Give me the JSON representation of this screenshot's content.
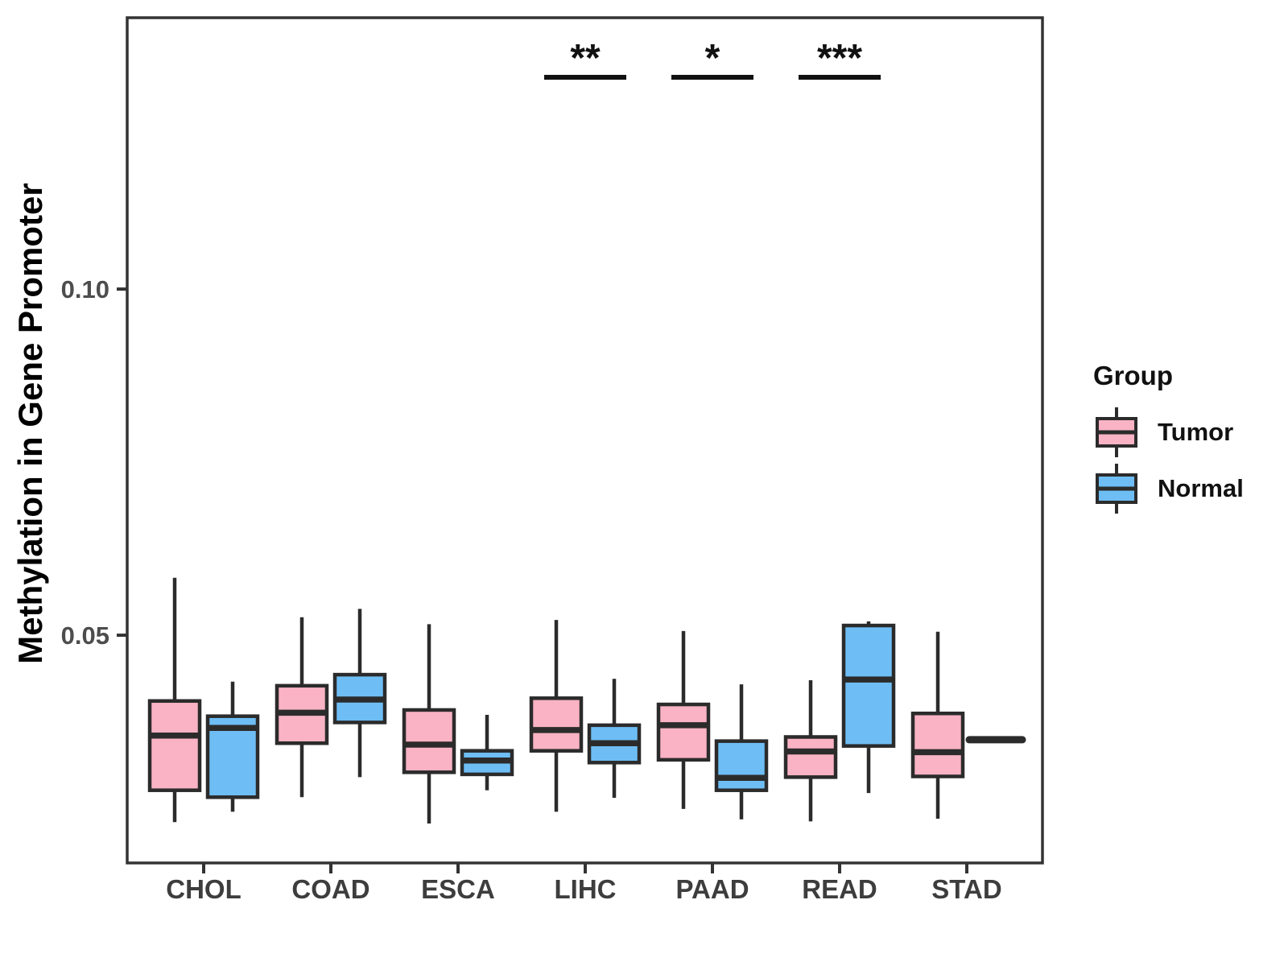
{
  "chart_data": {
    "type": "boxplot",
    "title": "",
    "xlabel": "",
    "ylabel": "Methylation in Gene Promoter",
    "categories": [
      "CHOL",
      "COAD",
      "ESCA",
      "LIHC",
      "PAAD",
      "READ",
      "STAD"
    ],
    "yticks": [
      0.05,
      0.1
    ],
    "ytick_labels": [
      "0.05",
      "0.10"
    ],
    "ylim": [
      0.0171,
      0.1392
    ],
    "grid": false,
    "legend_position": "right",
    "series": [
      {
        "name": "Tumor",
        "color": "#F9B3C4",
        "boxes": [
          {
            "category": "CHOL",
            "low": 0.023,
            "q1": 0.0276,
            "median": 0.0355,
            "q3": 0.0405,
            "high": 0.0583
          },
          {
            "category": "COAD",
            "low": 0.0266,
            "q1": 0.0344,
            "median": 0.0388,
            "q3": 0.0427,
            "high": 0.0526
          },
          {
            "category": "ESCA",
            "low": 0.0228,
            "q1": 0.0302,
            "median": 0.0342,
            "q3": 0.0392,
            "high": 0.0516
          },
          {
            "category": "LIHC",
            "low": 0.0245,
            "q1": 0.0333,
            "median": 0.0363,
            "q3": 0.0409,
            "high": 0.0522
          },
          {
            "category": "PAAD",
            "low": 0.0249,
            "q1": 0.032,
            "median": 0.037,
            "q3": 0.04,
            "high": 0.0506
          },
          {
            "category": "READ",
            "low": 0.0231,
            "q1": 0.0295,
            "median": 0.0332,
            "q3": 0.0353,
            "high": 0.0435
          },
          {
            "category": "STAD",
            "low": 0.0235,
            "q1": 0.0296,
            "median": 0.0331,
            "q3": 0.0387,
            "high": 0.0505
          }
        ]
      },
      {
        "name": "Normal",
        "color": "#6EBEF5",
        "boxes": [
          {
            "category": "CHOL",
            "low": 0.0245,
            "q1": 0.0266,
            "median": 0.0366,
            "q3": 0.0383,
            "high": 0.0433
          },
          {
            "category": "COAD",
            "low": 0.0295,
            "q1": 0.0374,
            "median": 0.0407,
            "q3": 0.0443,
            "high": 0.0538
          },
          {
            "category": "ESCA",
            "low": 0.0276,
            "q1": 0.0299,
            "median": 0.0319,
            "q3": 0.0333,
            "high": 0.0385
          },
          {
            "category": "LIHC",
            "low": 0.0265,
            "q1": 0.0316,
            "median": 0.0344,
            "q3": 0.037,
            "high": 0.0437
          },
          {
            "category": "PAAD",
            "low": 0.0234,
            "q1": 0.0276,
            "median": 0.0294,
            "q3": 0.0347,
            "high": 0.0429
          },
          {
            "category": "READ",
            "low": 0.0272,
            "q1": 0.034,
            "median": 0.0436,
            "q3": 0.0514,
            "high": 0.052
          },
          {
            "category": "STAD",
            "low": 0.0349,
            "q1": 0.0349,
            "median": 0.0349,
            "q3": 0.0349,
            "high": 0.0349
          }
        ]
      }
    ],
    "significance": [
      {
        "category": "LIHC",
        "label": "**"
      },
      {
        "category": "PAAD",
        "label": "*"
      },
      {
        "category": "READ",
        "label": "***"
      }
    ],
    "colors": {
      "box_line": "#2B2B2B",
      "panel_border": "#333333",
      "y_tick_text": "#4d4d4d",
      "x_tick_text": "#3d3d3d",
      "significance_text": "#111111"
    }
  },
  "legend": {
    "title": "Group",
    "items": [
      {
        "label": "Tumor",
        "color": "#F9B3C4"
      },
      {
        "label": "Normal",
        "color": "#6EBEF5"
      }
    ]
  }
}
